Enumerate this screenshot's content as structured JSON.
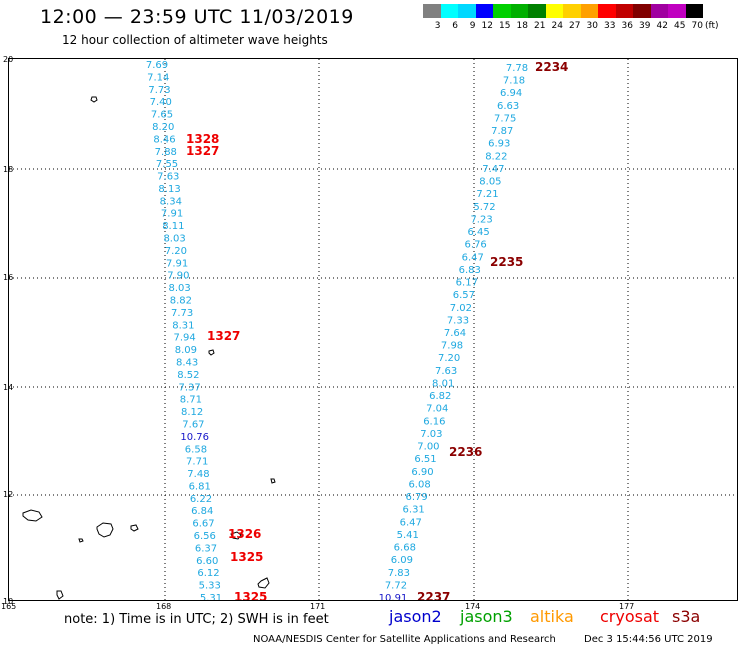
{
  "header": {
    "title": "12:00 — 23:59 UTC 11/03/2019",
    "subtitle": "12 hour collection of altimeter wave heights"
  },
  "legend": {
    "colors": [
      "#808080",
      "#00ffff",
      "#00d8ff",
      "#0000ff",
      "#00d000",
      "#00b000",
      "#008000",
      "#ffff00",
      "#ffd000",
      "#ffa000",
      "#ff0000",
      "#c00000",
      "#800000",
      "#a000a0",
      "#c000c0",
      "#000000"
    ],
    "labels": [
      "3",
      "6",
      "9",
      "12",
      "15",
      "18",
      "21",
      "24",
      "27",
      "30",
      "33",
      "36",
      "39",
      "42",
      "45",
      "70"
    ],
    "unit": "(ft)"
  },
  "axes": {
    "lat_labels": [
      "20",
      "18",
      "16",
      "14",
      "12",
      "10"
    ],
    "lon_labels": [
      "165",
      "168",
      "171",
      "174",
      "177"
    ]
  },
  "colors": {
    "wave_light": "#1ea8e0",
    "wave_dark": "#1414c8",
    "time_red": "#ee0000",
    "time_darkred": "#8b0000"
  },
  "track_a": [
    {
      "v": "7.69",
      "s": "l"
    },
    {
      "v": "7.14",
      "s": "l"
    },
    {
      "v": "7.73",
      "s": "l"
    },
    {
      "v": "7.40",
      "s": "l"
    },
    {
      "v": "7.65",
      "s": "l"
    },
    {
      "v": "8.20",
      "s": "l"
    },
    {
      "v": "8.46",
      "s": "l"
    },
    {
      "v": "7.88",
      "s": "l"
    },
    {
      "v": "7.55",
      "s": "l"
    },
    {
      "v": "7.63",
      "s": "l"
    },
    {
      "v": "8.13",
      "s": "l"
    },
    {
      "v": "8.34",
      "s": "l"
    },
    {
      "v": "7.91",
      "s": "l"
    },
    {
      "v": "8.11",
      "s": "l"
    },
    {
      "v": "8.03",
      "s": "l"
    },
    {
      "v": "7.20",
      "s": "l"
    },
    {
      "v": "7.91",
      "s": "l"
    },
    {
      "v": "7.90",
      "s": "l"
    },
    {
      "v": "8.03",
      "s": "l"
    },
    {
      "v": "8.82",
      "s": "l"
    },
    {
      "v": "7.73",
      "s": "l"
    },
    {
      "v": "8.31",
      "s": "l"
    },
    {
      "v": "7.94",
      "s": "l"
    },
    {
      "v": "8.09",
      "s": "l"
    },
    {
      "v": "8.43",
      "s": "l"
    },
    {
      "v": "8.52",
      "s": "l"
    },
    {
      "v": "7.37",
      "s": "l"
    },
    {
      "v": "8.71",
      "s": "l"
    },
    {
      "v": "8.12",
      "s": "l"
    },
    {
      "v": "7.67",
      "s": "l"
    },
    {
      "v": "10.76",
      "s": "d"
    },
    {
      "v": "6.58",
      "s": "l"
    },
    {
      "v": "7.71",
      "s": "l"
    },
    {
      "v": "7.48",
      "s": "l"
    },
    {
      "v": "6.81",
      "s": "l"
    },
    {
      "v": "6.22",
      "s": "l"
    },
    {
      "v": "6.84",
      "s": "l"
    },
    {
      "v": "6.67",
      "s": "l"
    },
    {
      "v": "6.56",
      "s": "l"
    },
    {
      "v": "6.37",
      "s": "l"
    },
    {
      "v": "6.60",
      "s": "l"
    },
    {
      "v": "6.12",
      "s": "l"
    },
    {
      "v": "5.33",
      "s": "l"
    },
    {
      "v": "5.31",
      "s": "l"
    }
  ],
  "track_b": [
    {
      "v": "7.78",
      "s": "l"
    },
    {
      "v": "7.18",
      "s": "l"
    },
    {
      "v": "6.94",
      "s": "l"
    },
    {
      "v": "6.63",
      "s": "l"
    },
    {
      "v": "7.75",
      "s": "l"
    },
    {
      "v": "7.87",
      "s": "l"
    },
    {
      "v": "6.93",
      "s": "l"
    },
    {
      "v": "8.22",
      "s": "l"
    },
    {
      "v": "7.47",
      "s": "l"
    },
    {
      "v": "8.05",
      "s": "l"
    },
    {
      "v": "7.21",
      "s": "l"
    },
    {
      "v": "5.72",
      "s": "l"
    },
    {
      "v": "7.23",
      "s": "l"
    },
    {
      "v": "6.45",
      "s": "l"
    },
    {
      "v": "6.76",
      "s": "l"
    },
    {
      "v": "6.47",
      "s": "l"
    },
    {
      "v": "6.83",
      "s": "l"
    },
    {
      "v": "6.17",
      "s": "l"
    },
    {
      "v": "6.57",
      "s": "l"
    },
    {
      "v": "7.02",
      "s": "l"
    },
    {
      "v": "7.33",
      "s": "l"
    },
    {
      "v": "7.64",
      "s": "l"
    },
    {
      "v": "7.98",
      "s": "l"
    },
    {
      "v": "7.20",
      "s": "l"
    },
    {
      "v": "7.63",
      "s": "l"
    },
    {
      "v": "8.01",
      "s": "l"
    },
    {
      "v": "6.82",
      "s": "l"
    },
    {
      "v": "7.04",
      "s": "l"
    },
    {
      "v": "6.16",
      "s": "l"
    },
    {
      "v": "7.03",
      "s": "l"
    },
    {
      "v": "7.00",
      "s": "l"
    },
    {
      "v": "6.51",
      "s": "l"
    },
    {
      "v": "6.90",
      "s": "l"
    },
    {
      "v": "6.08",
      "s": "l"
    },
    {
      "v": "6.79",
      "s": "l"
    },
    {
      "v": "6.31",
      "s": "l"
    },
    {
      "v": "6.47",
      "s": "l"
    },
    {
      "v": "5.41",
      "s": "l"
    },
    {
      "v": "6.68",
      "s": "l"
    },
    {
      "v": "6.09",
      "s": "l"
    },
    {
      "v": "7.83",
      "s": "l"
    },
    {
      "v": "7.72",
      "s": "l"
    },
    {
      "v": "10.91",
      "s": "d"
    }
  ],
  "times": [
    {
      "t": "1328",
      "c": "r"
    },
    {
      "t": "1327",
      "c": "r"
    },
    {
      "t": "1327",
      "c": "r"
    },
    {
      "t": "1326",
      "c": "r"
    },
    {
      "t": "1325",
      "c": "r"
    },
    {
      "t": "1325",
      "c": "r"
    },
    {
      "t": "2234",
      "c": "dr"
    },
    {
      "t": "2235",
      "c": "dr"
    },
    {
      "t": "2236",
      "c": "dr"
    },
    {
      "t": "2237",
      "c": "dr"
    }
  ],
  "footer": {
    "note": "note: 1) Time is in UTC; 2) SWH is in feet",
    "satellites": [
      {
        "name": "jason2",
        "color": "#0000cc"
      },
      {
        "name": "jason3",
        "color": "#00a000"
      },
      {
        "name": "altika",
        "color": "#ff9900"
      },
      {
        "name": "cryosat",
        "color": "#ee0000"
      },
      {
        "name": "s3a",
        "color": "#8b0000"
      }
    ],
    "credit": "NOAA/NESDIS Center for Satellite Applications and Research",
    "generated": "Dec  3 15:44:56 UTC 2019"
  }
}
